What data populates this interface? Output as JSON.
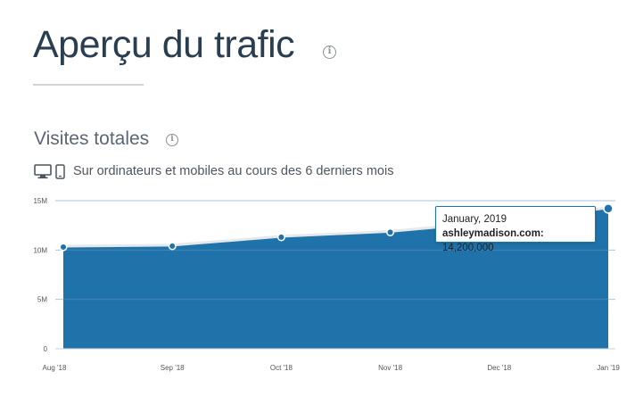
{
  "header": {
    "title": "Aperçu du trafic",
    "info_icon": "info-icon"
  },
  "section": {
    "title": "Visites totales",
    "info_icon": "info-icon",
    "device_icons": [
      "desktop-icon",
      "mobile-icon"
    ],
    "subtitle": "Sur ordinateurs et mobiles au cours des 6 derniers mois"
  },
  "tooltip": {
    "date": "January, 2019",
    "site": "ashleymadison.com:",
    "value": "14,200,000"
  },
  "colors": {
    "area": "#1f73aa",
    "title": "#2a3e52",
    "grid": "#5e96bf"
  },
  "chart_data": {
    "type": "area",
    "categories": [
      "Aug '18",
      "Sep '18",
      "Oct '18",
      "Nov '18",
      "Dec '18",
      "Jan '19"
    ],
    "y_tick_labels": [
      "0",
      "5M",
      "10M",
      "15M"
    ],
    "y_ticks": [
      0,
      5000000,
      10000000,
      15000000
    ],
    "ylim": [
      0,
      15000000
    ],
    "series": [
      {
        "name": "ashleymadison.com",
        "values": [
          10300000,
          10400000,
          11300000,
          11800000,
          12800000,
          14200000
        ]
      }
    ],
    "highlighted_index": 5,
    "grid": true,
    "legend": "none"
  }
}
